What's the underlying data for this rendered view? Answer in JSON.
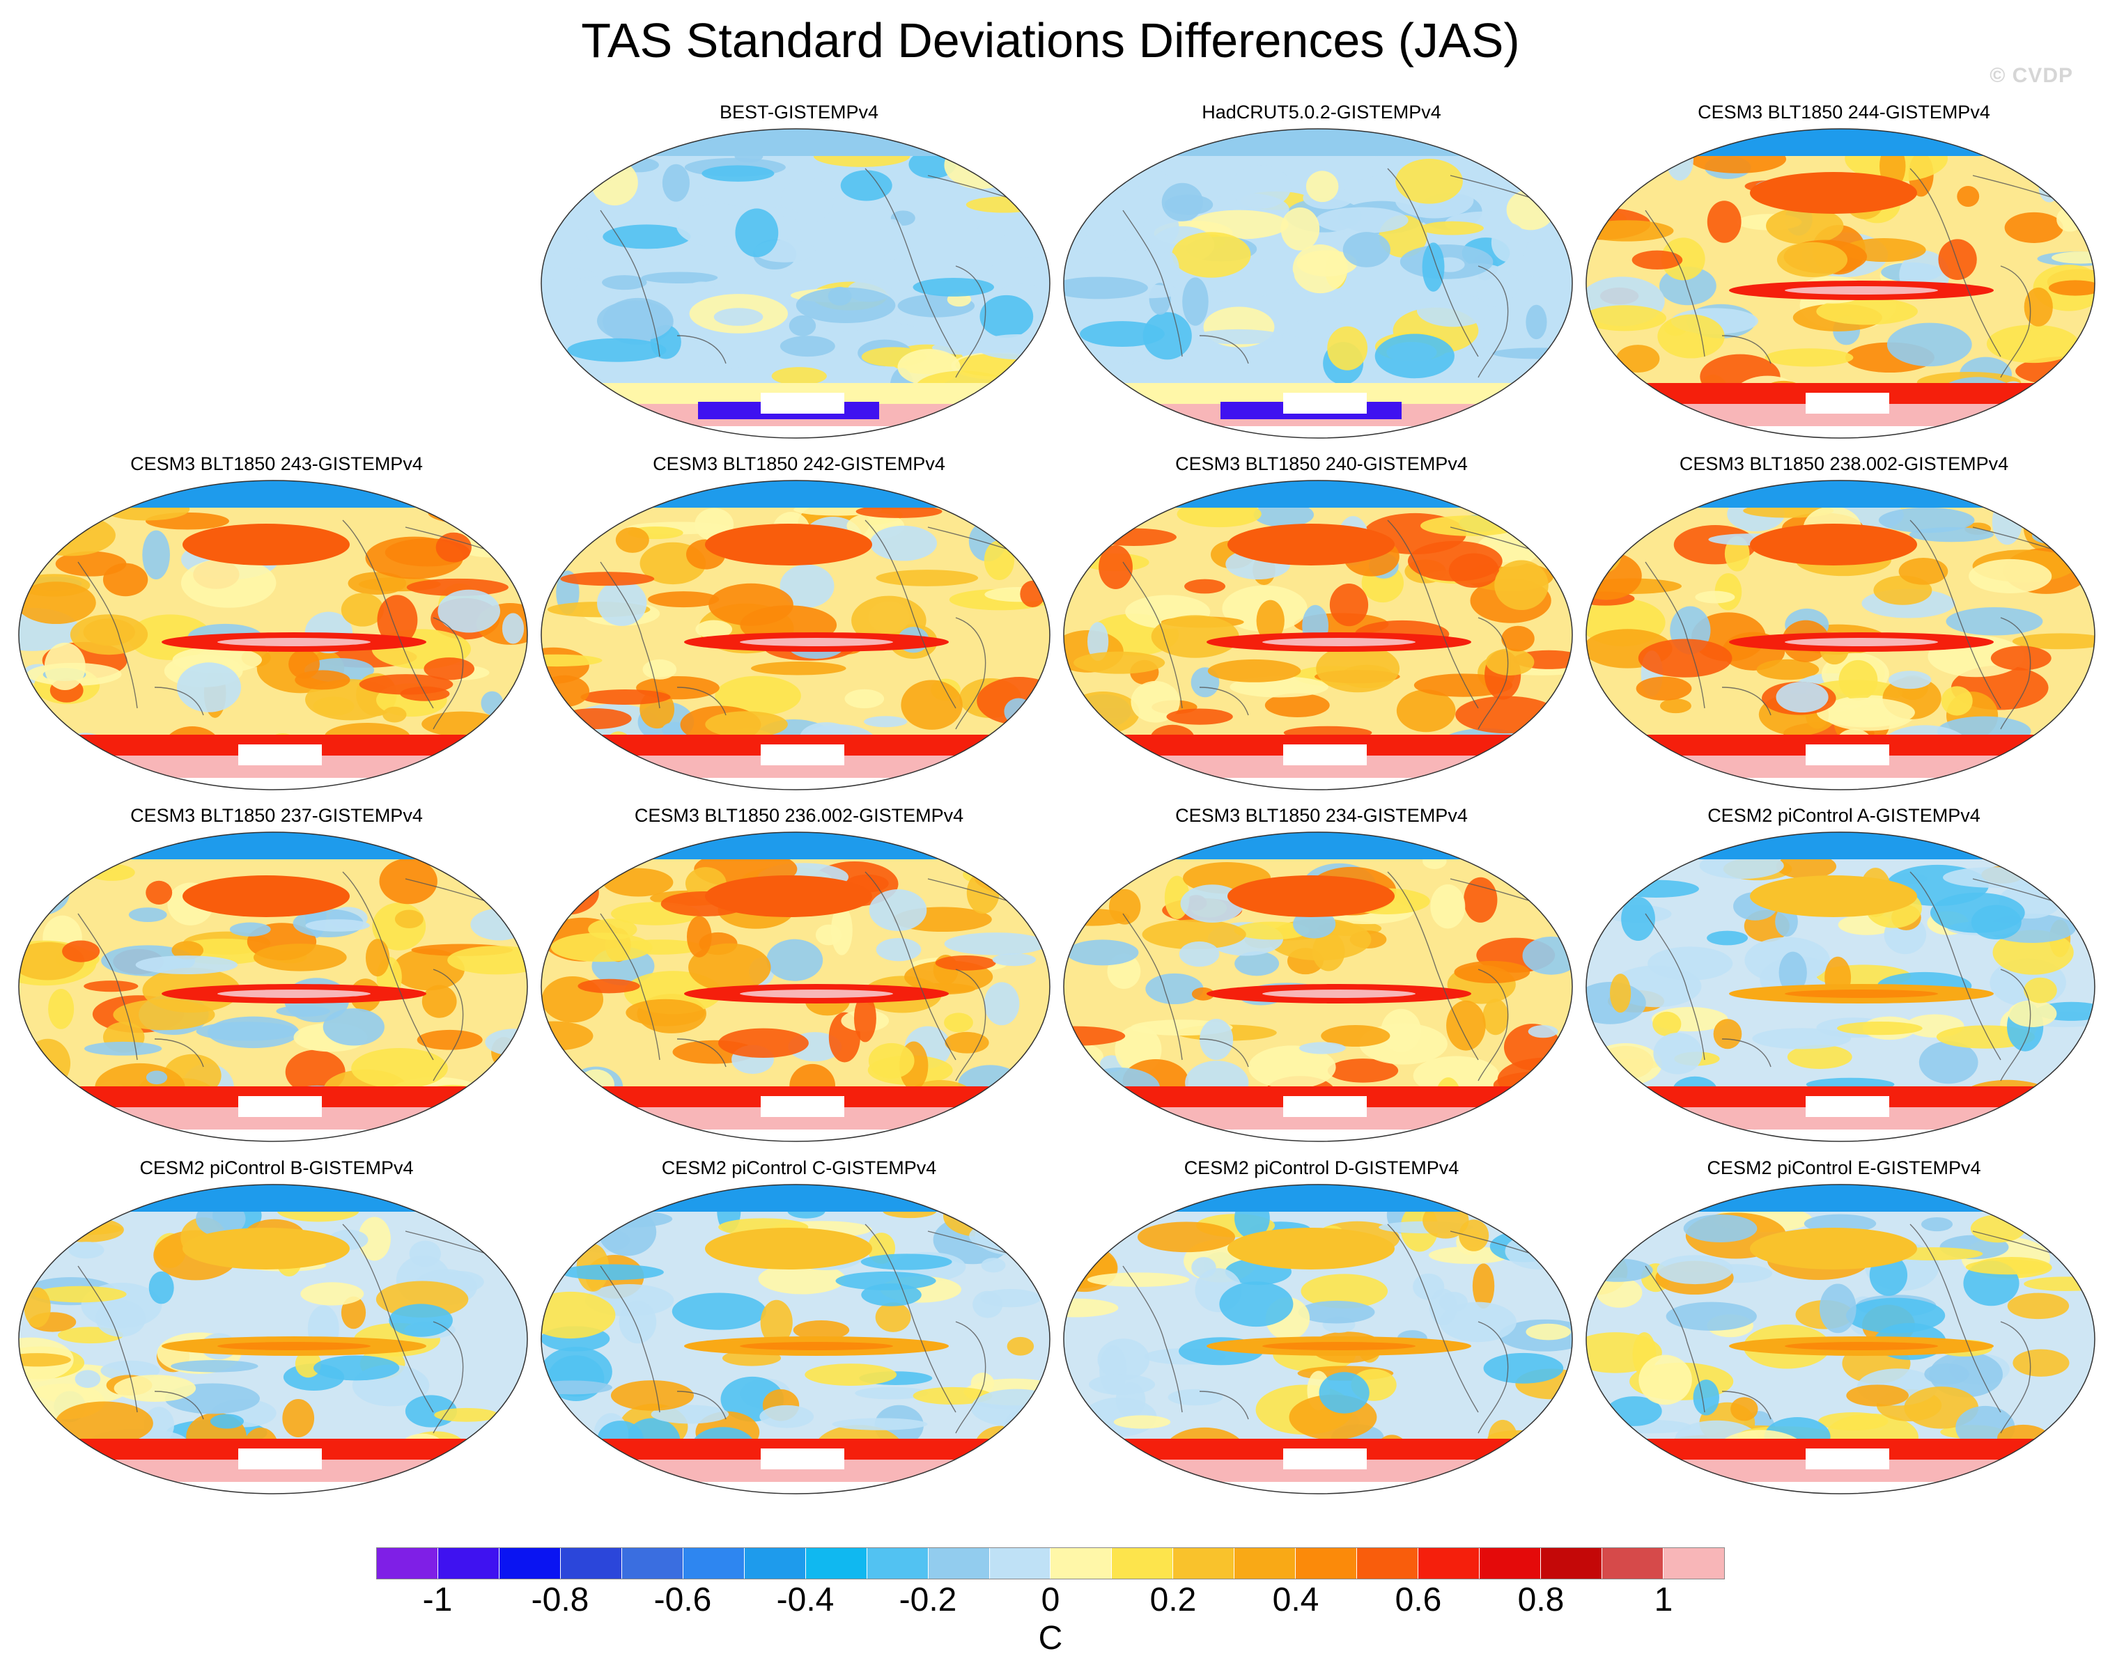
{
  "title": "TAS Standard Deviations Differences (JAS)",
  "watermark": "© CVDP",
  "panels": [
    {
      "title": "BEST-GISTEMPv4",
      "style": "obs"
    },
    {
      "title": "HadCRUT5.0.2-GISTEMPv4",
      "style": "obs"
    },
    {
      "title": "CESM3 BLT1850 244-GISTEMPv4",
      "style": "warm"
    },
    {
      "title": "CESM3 BLT1850 243-GISTEMPv4",
      "style": "warm"
    },
    {
      "title": "CESM3 BLT1850 242-GISTEMPv4",
      "style": "warm"
    },
    {
      "title": "CESM3 BLT1850 240-GISTEMPv4",
      "style": "warm"
    },
    {
      "title": "CESM3 BLT1850 238.002-GISTEMPv4",
      "style": "warm"
    },
    {
      "title": "CESM3 BLT1850 237-GISTEMPv4",
      "style": "warm"
    },
    {
      "title": "CESM3 BLT1850 236.002-GISTEMPv4",
      "style": "warm"
    },
    {
      "title": "CESM3 BLT1850 234-GISTEMPv4",
      "style": "warm"
    },
    {
      "title": "CESM2 piControl A-GISTEMPv4",
      "style": "mixed"
    },
    {
      "title": "CESM2 piControl B-GISTEMPv4",
      "style": "mixed"
    },
    {
      "title": "CESM2 piControl C-GISTEMPv4",
      "style": "mixed"
    },
    {
      "title": "CESM2 piControl D-GISTEMPv4",
      "style": "mixed"
    },
    {
      "title": "CESM2 piControl E-GISTEMPv4",
      "style": "mixed"
    }
  ],
  "colorbar": {
    "units": "C",
    "colors": [
      "#7f1fe6",
      "#3f12f0",
      "#0a14f2",
      "#2b46da",
      "#3a6ee0",
      "#2e86f0",
      "#1e9bec",
      "#10b8f0",
      "#52c2f2",
      "#92ccee",
      "#bfe1f6",
      "#fff7a8",
      "#fde44c",
      "#f9c22c",
      "#f9a916",
      "#fb8a0a",
      "#f95d0c",
      "#f51f0c",
      "#e40a0a",
      "#c40808",
      "#d64a4a",
      "#f8b6b8"
    ],
    "tick_labels": [
      "-1",
      "-0.8",
      "-0.6",
      "-0.4",
      "-0.2",
      "0",
      "0.2",
      "0.4",
      "0.6",
      "0.8",
      "1"
    ]
  }
}
